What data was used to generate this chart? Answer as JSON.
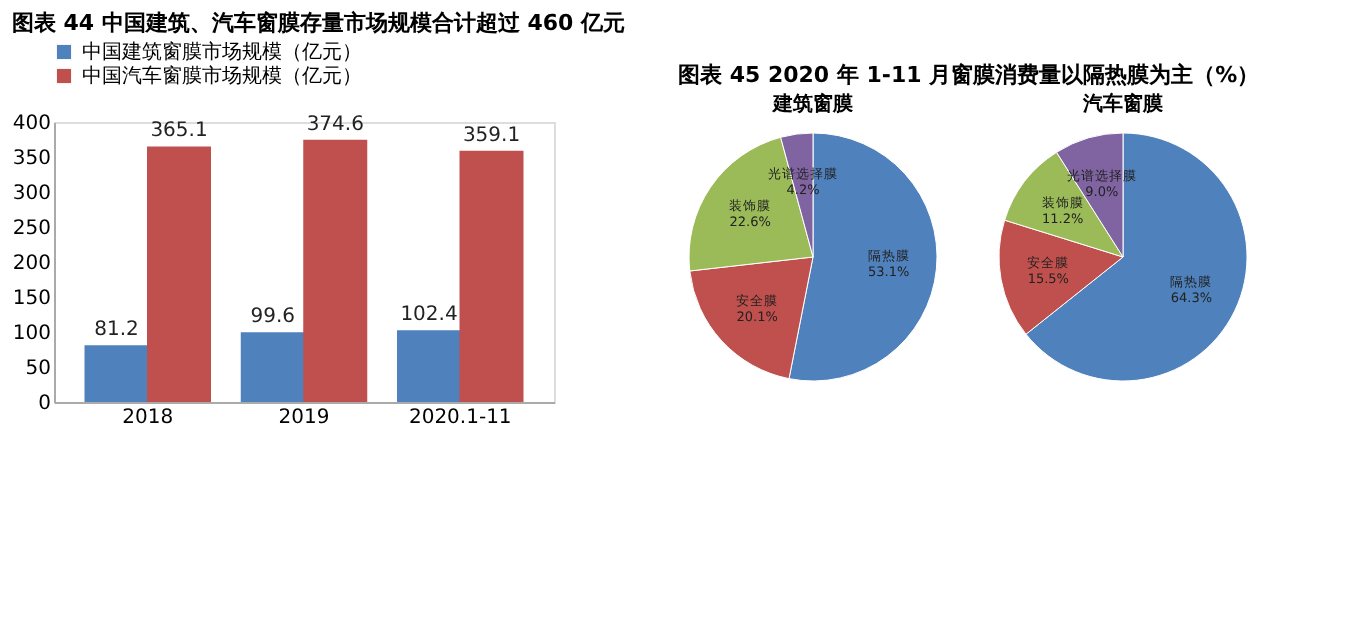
{
  "chart_data": [
    {
      "type": "bar",
      "title": "图表 44 中国建筑、汽车窗膜存量市场规模合计超过 460 亿元",
      "categories": [
        "2018",
        "2019",
        "2020.1-11"
      ],
      "series": [
        {
          "name": "中国建筑窗膜市场规模（亿元）",
          "color": "#4f81bd",
          "values": [
            81.2,
            99.6,
            102.4
          ]
        },
        {
          "name": "中国汽车窗膜市场规模（亿元）",
          "color": "#c0504d",
          "values": [
            365.1,
            374.6,
            359.1
          ]
        }
      ],
      "ylim": [
        0,
        400
      ],
      "yticks": [
        0,
        50,
        100,
        150,
        200,
        250,
        300,
        350,
        400
      ],
      "grid": false,
      "legend": "top",
      "data_labels": true
    },
    {
      "type": "pie",
      "title": "图表 45 2020 年 1-11 月窗膜消费量以隔热膜为主（%）",
      "subtitle": "建筑窗膜",
      "categories": [
        "隔热膜",
        "安全膜",
        "装饰膜",
        "光谱选择膜"
      ],
      "values": [
        53.1,
        20.1,
        22.6,
        4.2
      ],
      "value_labels": [
        "53.1%",
        "20.1%",
        "22.6%",
        "4.2%"
      ],
      "colors": [
        "#4f81bd",
        "#c0504d",
        "#9bbb59",
        "#8064a2"
      ]
    },
    {
      "type": "pie",
      "title": "汽车窗膜",
      "categories": [
        "隔热膜",
        "安全膜",
        "装饰膜",
        "光谱选择膜"
      ],
      "values": [
        64.3,
        15.5,
        11.2,
        9.0
      ],
      "value_labels": [
        "64.3%",
        "15.5%",
        "11.2%",
        "9.0%"
      ],
      "colors": [
        "#4f81bd",
        "#c0504d",
        "#9bbb59",
        "#8064a2"
      ]
    }
  ]
}
